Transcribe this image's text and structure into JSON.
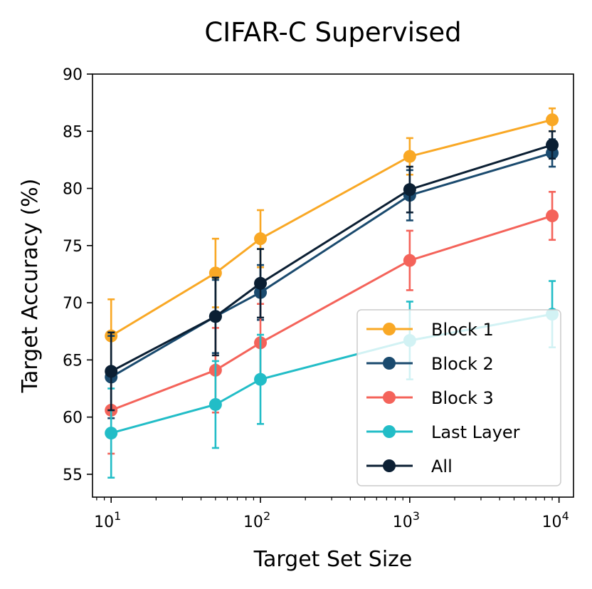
{
  "chart_data": {
    "type": "line",
    "title": "CIFAR-C Supervised",
    "xlabel": "Target Set Size",
    "ylabel": "Target Accuracy (%)",
    "xscale": "log",
    "xlim": [
      7.5,
      12500
    ],
    "ylim": [
      53,
      90
    ],
    "yticks": [
      55,
      60,
      65,
      70,
      75,
      80,
      85,
      90
    ],
    "xticks": [
      {
        "value": 10,
        "base": "10",
        "exp": "1"
      },
      {
        "value": 100,
        "base": "10",
        "exp": "2"
      },
      {
        "value": 1000,
        "base": "10",
        "exp": "3"
      },
      {
        "value": 10000,
        "base": "10",
        "exp": "4"
      }
    ],
    "x": [
      10,
      50,
      100,
      1000,
      9000
    ],
    "legend_position": "lower-right",
    "series": [
      {
        "name": "Block 1",
        "color": "#f9a825",
        "values": [
          67.1,
          72.6,
          75.6,
          82.8,
          86.0
        ],
        "errors": [
          3.2,
          3.0,
          2.5,
          1.6,
          1.0
        ]
      },
      {
        "name": "Block 2",
        "color": "#1a4a6e",
        "values": [
          63.5,
          68.8,
          70.9,
          79.4,
          83.1
        ],
        "errors": [
          3.6,
          3.2,
          2.4,
          2.2,
          1.2
        ]
      },
      {
        "name": "Block 3",
        "color": "#f4635a",
        "values": [
          60.6,
          64.1,
          66.5,
          73.7,
          77.6
        ],
        "errors": [
          3.8,
          3.7,
          3.4,
          2.6,
          2.1
        ]
      },
      {
        "name": "Last Layer",
        "color": "#22bdc7",
        "values": [
          58.6,
          61.1,
          63.3,
          66.7,
          69.0
        ],
        "errors": [
          3.9,
          3.8,
          3.9,
          3.4,
          2.9
        ]
      },
      {
        "name": "All",
        "color": "#0b1f33",
        "values": [
          64.0,
          68.8,
          71.7,
          79.9,
          83.8
        ],
        "errors": [
          3.4,
          3.4,
          3.0,
          2.0,
          1.2
        ]
      }
    ]
  }
}
